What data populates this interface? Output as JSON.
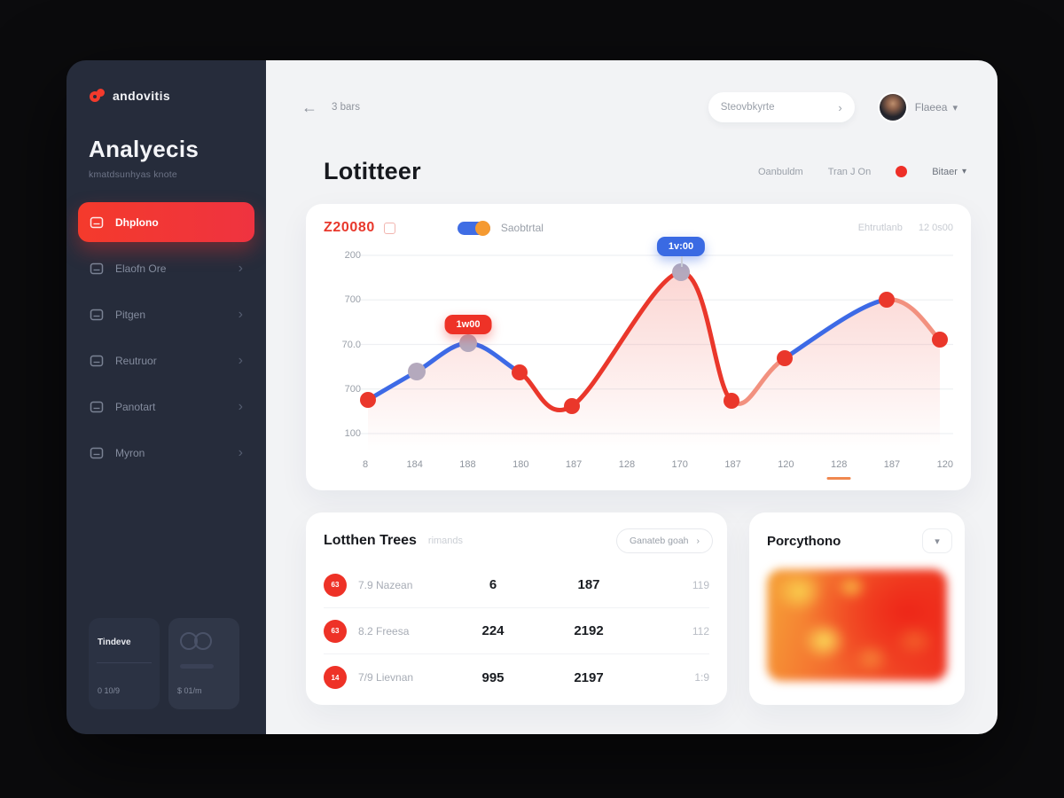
{
  "app": {
    "brand": "andovitis",
    "sidebar_title": "Analyecis",
    "sidebar_subtitle": "kmatdsunhyas knote",
    "menu": [
      {
        "label": "Dhplono",
        "active": true
      },
      {
        "label": "Elaofn Ore",
        "active": false
      },
      {
        "label": "Pitgen",
        "active": false
      },
      {
        "label": "Reutruor",
        "active": false
      },
      {
        "label": "Panotart",
        "active": false
      },
      {
        "label": "Myron",
        "active": false
      }
    ],
    "bottom_card_left": {
      "title": "Tindeve",
      "value": "0 10/9"
    },
    "bottom_card_right": {
      "value": "$ 01/m"
    }
  },
  "header": {
    "back_label": "3 bars",
    "search_placeholder": "Steovbkyrte",
    "user_name": "Flaeea"
  },
  "page": {
    "title": "Lotitteer",
    "control_1": "Oanbuldm",
    "control_2": "Tran J On",
    "filter_label": "Bitaer"
  },
  "chart_card": {
    "value": "Z20080",
    "legend_label": "Saobtrtal",
    "right_label_1": "Ehtrutlanb",
    "right_label_2": "12 0s00"
  },
  "chart_data": {
    "type": "line",
    "title": "Z20080",
    "legend": [
      "Saobtrtal"
    ],
    "x_labels": [
      "8",
      "184",
      "188",
      "180",
      "187",
      "128",
      "170",
      "187",
      "120",
      "128",
      "187",
      "120"
    ],
    "x_active_index": 9,
    "y_labels": [
      "200",
      "700",
      "70.0",
      "700",
      "100"
    ],
    "grid": true,
    "points": [
      [
        8,
        171
      ],
      [
        63,
        139
      ],
      [
        121,
        107
      ],
      [
        179,
        140
      ],
      [
        238,
        178
      ],
      [
        361,
        27
      ],
      [
        418,
        172
      ],
      [
        478,
        124
      ],
      [
        593,
        58
      ],
      [
        653,
        103
      ]
    ],
    "segment_colors": [
      "blue",
      "blue",
      "blue",
      "red",
      "red",
      "red",
      "salmon",
      "blue",
      "salmon"
    ],
    "dot_colors": [
      "red",
      "gray",
      "gray",
      "red",
      "red",
      "gray",
      "red",
      "red",
      "red",
      "red"
    ],
    "colors": {
      "blue": "#3d6ae6",
      "red": "#ea372b",
      "salmon": "#f2917f",
      "gray": "#b4a9bd",
      "fill_top": "rgba(242,118,108,0.30)",
      "fill_bottom": "rgba(242,118,108,0)",
      "grid": "#eef0f3"
    },
    "tooltips": [
      {
        "text": "1w00",
        "point_index": 2,
        "color": "red"
      },
      {
        "text": "1v:00",
        "point_index": 5,
        "color": "blue"
      }
    ]
  },
  "table_card": {
    "title": "Lotthen Trees",
    "subtitle": "rimands",
    "dropdown_label": "Ganateb goah",
    "rows": [
      {
        "badge": "63",
        "name": "7.9 Nazean",
        "v1": "6",
        "v2": "187",
        "v3": "119"
      },
      {
        "badge": "63",
        "name": "8.2 Freesa",
        "v1": "224",
        "v2": "2192",
        "v3": "112"
      },
      {
        "badge": "14",
        "name": "7/9 Lievnan",
        "v1": "995",
        "v2": "2197",
        "v3": "1:9"
      }
    ]
  },
  "heat_card": {
    "title": "Porcythono"
  }
}
